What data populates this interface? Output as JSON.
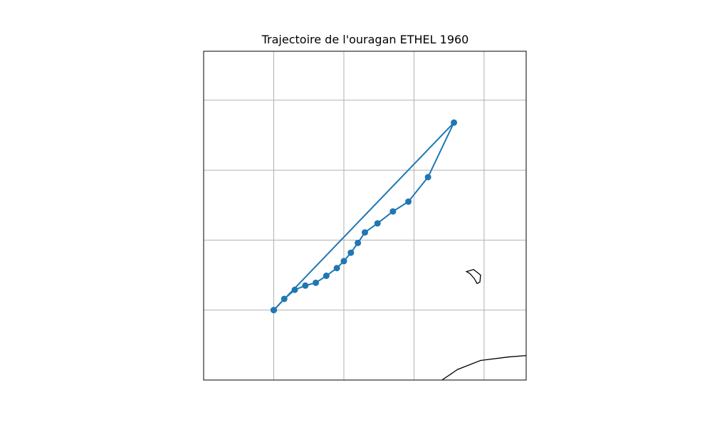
{
  "title": "Trajectoire de l'ouragan ETHEL 1960",
  "chart_data": {
    "type": "map-track",
    "title": "Trajectoire de l'ouragan ETHEL 1960",
    "grid": true,
    "projection": "plate-carree",
    "lon_range": [
      -96.0,
      -91.4
    ],
    "lat_range": [
      26.0,
      30.7
    ],
    "gridlines": {
      "lon": [
        -95,
        -94,
        -93,
        -92
      ],
      "lat": [
        30,
        29,
        28,
        27
      ]
    },
    "track_color": "#1f77b4",
    "marker": "circle",
    "track": [
      {
        "lon": -95.0,
        "lat": 27.0
      },
      {
        "lon": -94.85,
        "lat": 27.16
      },
      {
        "lon": -94.7,
        "lat": 27.29
      },
      {
        "lon": -94.55,
        "lat": 27.35
      },
      {
        "lon": -94.4,
        "lat": 27.39
      },
      {
        "lon": -94.25,
        "lat": 27.49
      },
      {
        "lon": -94.1,
        "lat": 27.6
      },
      {
        "lon": -94.0,
        "lat": 27.7
      },
      {
        "lon": -93.9,
        "lat": 27.82
      },
      {
        "lon": -93.8,
        "lat": 27.96
      },
      {
        "lon": -93.7,
        "lat": 28.11
      },
      {
        "lon": -93.52,
        "lat": 28.24
      },
      {
        "lon": -93.3,
        "lat": 28.41
      },
      {
        "lon": -93.08,
        "lat": 28.55
      },
      {
        "lon": -92.8,
        "lat": 28.9
      },
      {
        "lon": -92.43,
        "lat": 29.68
      },
      {
        "lon": -95.0,
        "lat": 27.0
      }
    ],
    "coastlines": [
      {
        "name": "coastline-bottom-right",
        "points": [
          [
            -92.6,
            26.0
          ],
          [
            -92.38,
            26.15
          ],
          [
            -92.05,
            26.28
          ],
          [
            -91.65,
            26.33
          ],
          [
            -91.4,
            26.35
          ]
        ]
      },
      {
        "name": "island-right",
        "points": [
          [
            -92.25,
            27.55
          ],
          [
            -92.15,
            27.58
          ],
          [
            -92.05,
            27.5
          ],
          [
            -92.06,
            27.4
          ],
          [
            -92.1,
            27.38
          ],
          [
            -92.14,
            27.45
          ],
          [
            -92.2,
            27.52
          ]
        ]
      }
    ]
  }
}
